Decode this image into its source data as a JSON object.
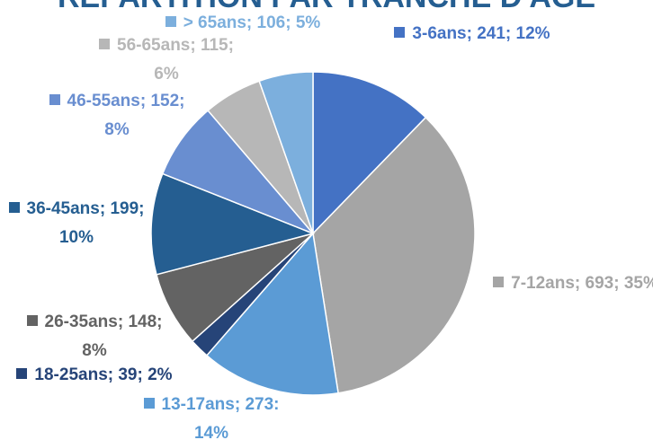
{
  "chart_data": {
    "type": "pie",
    "title": "RÉPARTITION PAR TRANCHE D'ÂGE",
    "values": [
      241,
      693,
      273,
      39,
      148,
      199,
      152,
      115,
      106
    ],
    "value_labels": [
      "3-6ans; 241; 12%",
      "7-12ans; 693; 35%",
      "13-17ans; 273: 14%",
      "18-25ans; 39; 2%",
      "26-35ans; 148; 8%",
      "36-45ans; 199; 10%",
      "46-55ans; 152; 8%",
      "56-65ans; 115; 6%",
      "> 65ans; 106; 5%"
    ],
    "colors": [
      "#4472c4",
      "#a5a5a5",
      "#5b9bd5",
      "#264478",
      "#636363",
      "#255e91",
      "#698ed0",
      "#b7b7b7",
      "#7cafdd"
    ]
  }
}
